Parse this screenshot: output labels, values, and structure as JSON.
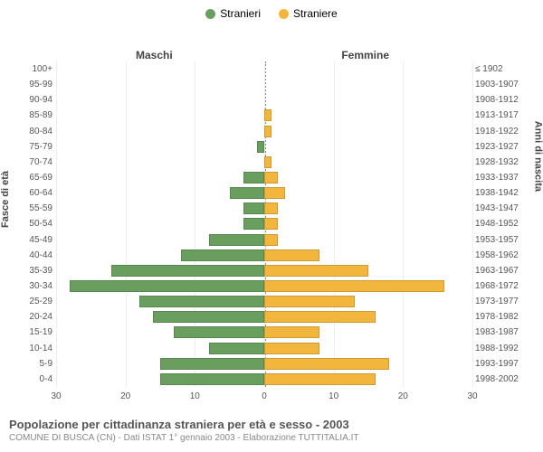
{
  "chart": {
    "type": "population-pyramid",
    "legend": [
      {
        "label": "Stranieri",
        "color": "#6a9e5f"
      },
      {
        "label": "Straniere",
        "color": "#f3b63d"
      }
    ],
    "column_headers": {
      "left": "Maschi",
      "right": "Femmine"
    },
    "y_axis_left_label": "Fasce di età",
    "y_axis_right_label": "Anni di nascita",
    "xlim": 30,
    "xticks": [
      30,
      20,
      10,
      0,
      0,
      10,
      20,
      30
    ],
    "xtick_positions": [
      0,
      16.67,
      33.33,
      50,
      50,
      66.67,
      83.33,
      100
    ],
    "grid_positions": [
      0,
      16.67,
      33.33,
      50,
      66.67,
      83.33,
      100
    ],
    "bar_color_left": "#6a9e5f",
    "bar_color_right": "#f3b63d",
    "background_color": "#ffffff",
    "grid_color": "#eeeeee",
    "rows": [
      {
        "age": "100+",
        "year": "≤ 1902",
        "m": 0,
        "f": 0
      },
      {
        "age": "95-99",
        "year": "1903-1907",
        "m": 0,
        "f": 0
      },
      {
        "age": "90-94",
        "year": "1908-1912",
        "m": 0,
        "f": 0
      },
      {
        "age": "85-89",
        "year": "1913-1917",
        "m": 0,
        "f": 1
      },
      {
        "age": "80-84",
        "year": "1918-1922",
        "m": 0,
        "f": 1
      },
      {
        "age": "75-79",
        "year": "1923-1927",
        "m": 1,
        "f": 0
      },
      {
        "age": "70-74",
        "year": "1928-1932",
        "m": 0,
        "f": 1
      },
      {
        "age": "65-69",
        "year": "1933-1937",
        "m": 3,
        "f": 2
      },
      {
        "age": "60-64",
        "year": "1938-1942",
        "m": 5,
        "f": 3
      },
      {
        "age": "55-59",
        "year": "1943-1947",
        "m": 3,
        "f": 2
      },
      {
        "age": "50-54",
        "year": "1948-1952",
        "m": 3,
        "f": 2
      },
      {
        "age": "45-49",
        "year": "1953-1957",
        "m": 8,
        "f": 2
      },
      {
        "age": "40-44",
        "year": "1958-1962",
        "m": 12,
        "f": 8
      },
      {
        "age": "35-39",
        "year": "1963-1967",
        "m": 22,
        "f": 15
      },
      {
        "age": "30-34",
        "year": "1968-1972",
        "m": 28,
        "f": 26
      },
      {
        "age": "25-29",
        "year": "1973-1977",
        "m": 18,
        "f": 13
      },
      {
        "age": "20-24",
        "year": "1978-1982",
        "m": 16,
        "f": 16
      },
      {
        "age": "15-19",
        "year": "1983-1987",
        "m": 13,
        "f": 8
      },
      {
        "age": "10-14",
        "year": "1988-1992",
        "m": 8,
        "f": 8
      },
      {
        "age": "5-9",
        "year": "1993-1997",
        "m": 15,
        "f": 18
      },
      {
        "age": "0-4",
        "year": "1998-2002",
        "m": 15,
        "f": 16
      }
    ]
  },
  "footer": {
    "title": "Popolazione per cittadinanza straniera per età e sesso - 2003",
    "subtitle": "COMUNE DI BUSCA (CN) - Dati ISTAT 1° gennaio 2003 - Elaborazione TUTTITALIA.IT"
  }
}
